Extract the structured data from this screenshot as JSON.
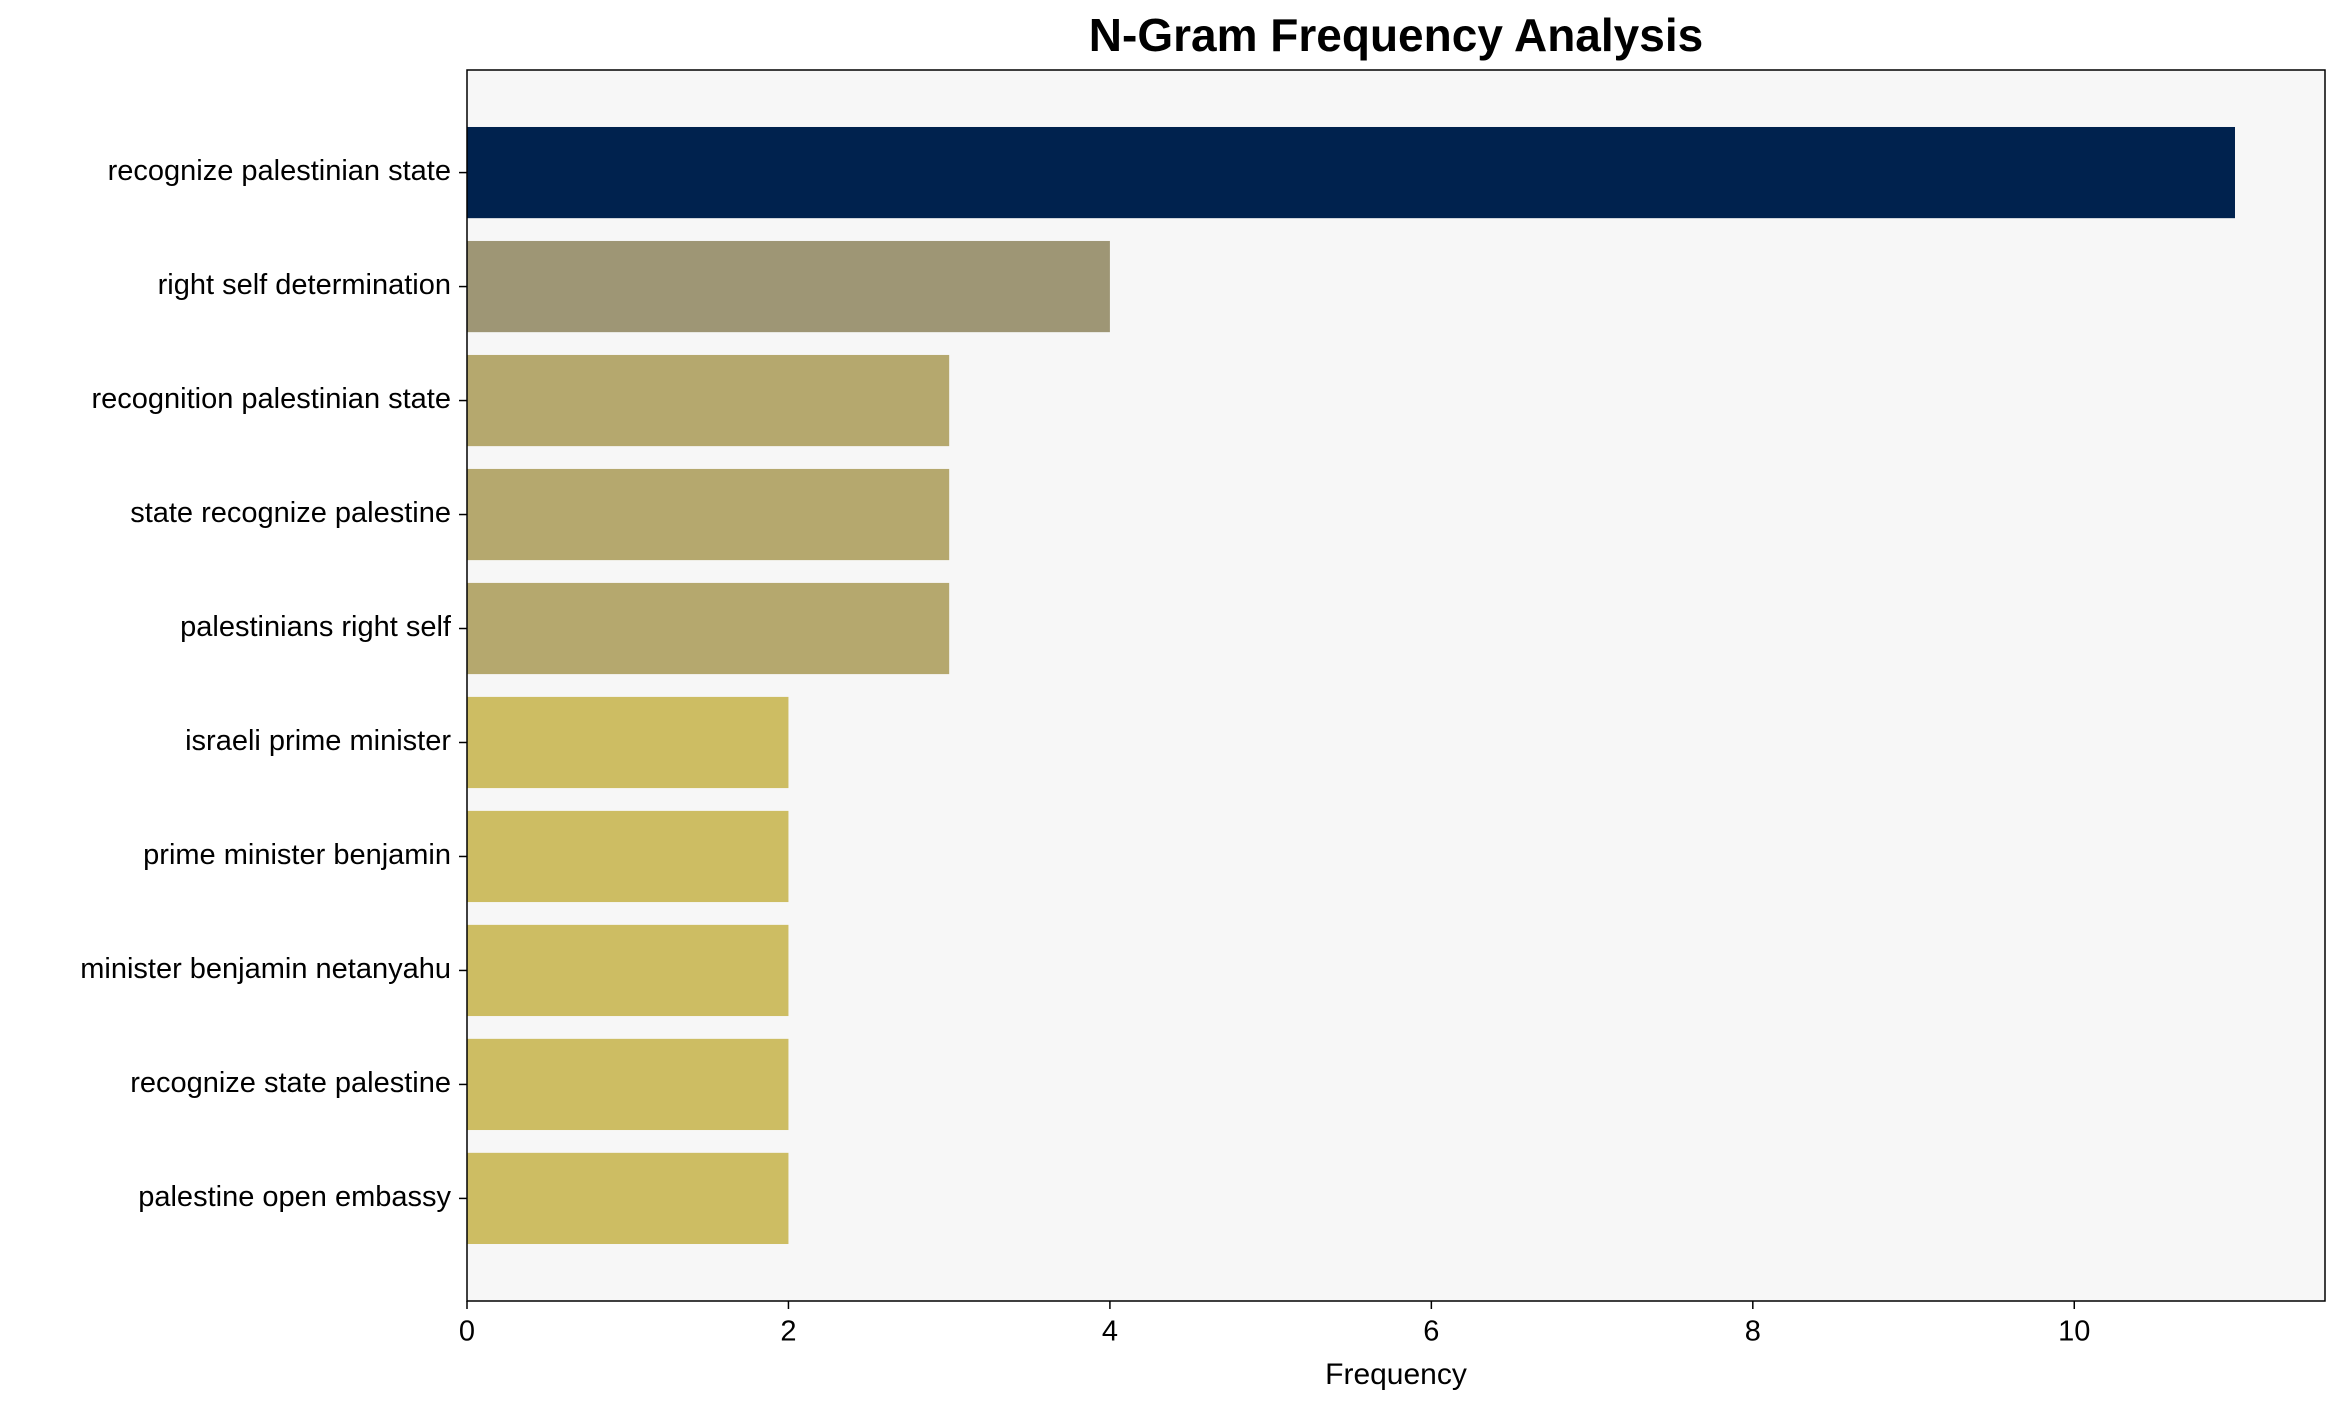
{
  "chart_data": {
    "type": "bar",
    "orientation": "horizontal",
    "title": "N-Gram Frequency Analysis",
    "xlabel": "Frequency",
    "categories": [
      "recognize palestinian state",
      "right self determination",
      "recognition palestinian state",
      "state recognize palestine",
      "palestinians right self",
      "israeli prime minister",
      "prime minister benjamin",
      "minister benjamin netanyahu",
      "recognize state palestine",
      "palestine open embassy"
    ],
    "values": [
      11,
      4,
      3,
      3,
      3,
      2,
      2,
      2,
      2,
      2
    ],
    "colors": [
      "#00224e",
      "#9e9675",
      "#b5a86e",
      "#b5a86e",
      "#b5a86e",
      "#cdbd63",
      "#cdbd63",
      "#cdbd63",
      "#cdbd63",
      "#cdbd63"
    ],
    "xlim": [
      0,
      11.56
    ],
    "xticks": [
      0,
      2,
      4,
      6,
      8,
      10
    ]
  }
}
